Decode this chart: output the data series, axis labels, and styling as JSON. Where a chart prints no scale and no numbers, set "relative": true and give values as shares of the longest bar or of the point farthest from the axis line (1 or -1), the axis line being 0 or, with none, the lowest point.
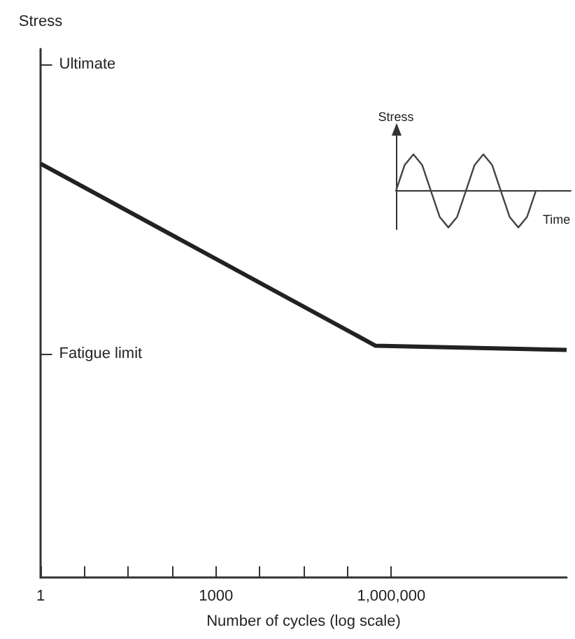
{
  "chart_data": [
    {
      "type": "line",
      "log": "x",
      "ylabel": "Stress",
      "xlabel": "Number of cycles (log scale)",
      "x": [
        1,
        540000,
        1000000000
      ],
      "series": [
        {
          "color": "#222222",
          "values": [
            1,
            0.56,
            0.55
          ]
        }
      ],
      "xlim": [
        1,
        1000000000
      ],
      "xticks": [
        "1",
        {
          "value": 5.62,
          "label": null
        },
        {
          "value": 31.6,
          "label": null
        },
        {
          "value": 178,
          "label": null
        },
        {
          "value": 1000,
          "label": "1000"
        },
        {
          "value": 5620,
          "label": null
        },
        {
          "value": 31600,
          "label": null
        },
        {
          "value": 178000,
          "label": null
        },
        {
          "value": 1000000,
          "label": "1,000,000"
        }
      ],
      "relative": true,
      "ref_lines": [
        {
          "axis": "y",
          "value": 1.24,
          "label": "Ultimate"
        },
        {
          "axis": "y",
          "value": 0.54,
          "label": "Fatigue limit"
        }
      ],
      "marker": "none",
      "grid": false
    },
    {
      "type": "line",
      "relative": true,
      "ylabel": "Stress",
      "xlabel": "Time",
      "categories": [
        null,
        null,
        null,
        null,
        null,
        null,
        null,
        null,
        null,
        null,
        null,
        null,
        null,
        null,
        null,
        null,
        null,
        null,
        null,
        null,
        null
      ],
      "series": [
        {
          "color": "#444444",
          "values": [
            0,
            0.71,
            1,
            0.71,
            0,
            -0.71,
            -1,
            -0.71,
            0,
            0.71,
            1,
            0.71,
            0,
            -0.71,
            -1,
            -0.71,
            0,
            null,
            null,
            null,
            null
          ]
        }
      ],
      "marker": "none",
      "grid": false
    }
  ]
}
